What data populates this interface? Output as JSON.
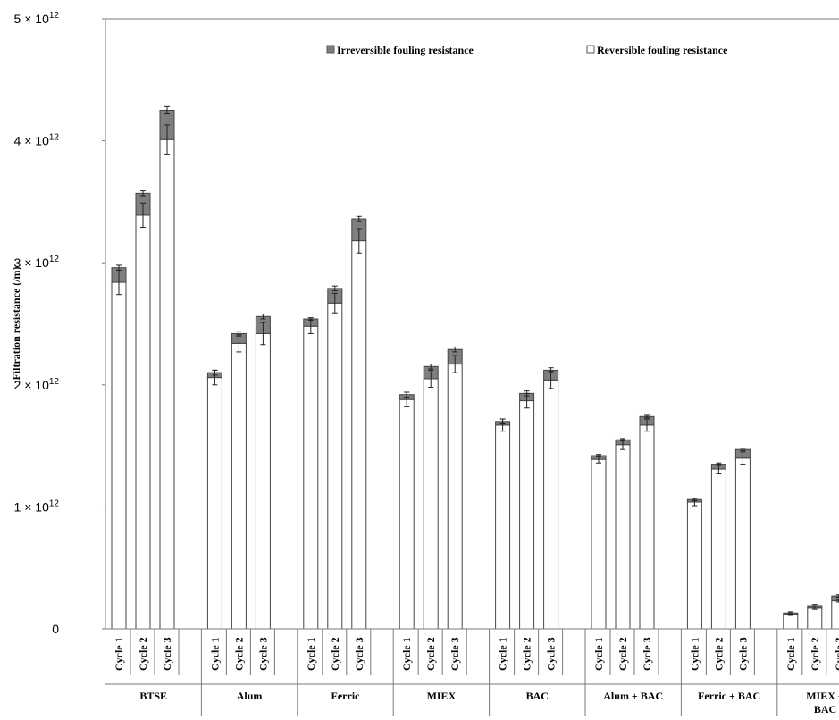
{
  "chart_data": {
    "type": "bar",
    "stacked": true,
    "ylabel": "Filtration resistance (/m)",
    "ylim": [
      0,
      5000000000000.0
    ],
    "y_ticks": [
      {
        "value": 0,
        "label": "0"
      },
      {
        "value": 1000000000000.0,
        "label": "1 × 10",
        "exp": "12"
      },
      {
        "value": 2000000000000.0,
        "label": "2 × 10",
        "exp": "12"
      },
      {
        "value": 3000000000000.0,
        "label": "3 × 10",
        "exp": "12"
      },
      {
        "value": 4000000000000.0,
        "label": "4 × 10",
        "exp": "12"
      },
      {
        "value": 5000000000000.0,
        "label": "5 × 10",
        "exp": "12"
      }
    ],
    "legend": {
      "placement": "top",
      "irreversible": {
        "label": "Irreversible fouling resistance",
        "color": "#7f7f7f"
      },
      "reversible": {
        "label": "Reversible fouling resistance",
        "color": "#ffffff"
      }
    },
    "cycle_labels": [
      "Cycle 1",
      "Cycle 2",
      "Cycle 3"
    ],
    "groups": [
      {
        "name": "BTSE",
        "reversible": [
          2840000000000.0,
          3390000000000.0,
          4010000000000.0
        ],
        "irreversible": [
          120000000000.0,
          180000000000.0,
          240000000000.0
        ],
        "err_reversible": [
          100000000000.0,
          100000000000.0,
          120000000000.0
        ],
        "err_total": [
          20000000000.0,
          20000000000.0,
          30000000000.0
        ]
      },
      {
        "name": "Alum",
        "reversible": [
          2060000000000.0,
          2340000000000.0,
          2420000000000.0
        ],
        "irreversible": [
          40000000000.0,
          80000000000.0,
          140000000000.0
        ],
        "err_reversible": [
          60000000000.0,
          70000000000.0,
          90000000000.0
        ],
        "err_total": [
          20000000000.0,
          20000000000.0,
          20000000000.0
        ]
      },
      {
        "name": "Ferric",
        "reversible": [
          2480000000000.0,
          2670000000000.0,
          3180000000000.0
        ],
        "irreversible": [
          60000000000.0,
          120000000000.0,
          180000000000.0
        ],
        "err_reversible": [
          60000000000.0,
          80000000000.0,
          100000000000.0
        ],
        "err_total": [
          10000000000.0,
          20000000000.0,
          20000000000.0
        ]
      },
      {
        "name": "MIEX",
        "reversible": [
          1880000000000.0,
          2050000000000.0,
          2170000000000.0
        ],
        "irreversible": [
          40000000000.0,
          100000000000.0,
          120000000000.0
        ],
        "err_reversible": [
          60000000000.0,
          70000000000.0,
          70000000000.0
        ],
        "err_total": [
          20000000000.0,
          20000000000.0,
          20000000000.0
        ]
      },
      {
        "name": "BAC",
        "reversible": [
          1670000000000.0,
          1870000000000.0,
          2040000000000.0
        ],
        "irreversible": [
          30000000000.0,
          60000000000.0,
          80000000000.0
        ],
        "err_reversible": [
          50000000000.0,
          60000000000.0,
          70000000000.0
        ],
        "err_total": [
          20000000000.0,
          20000000000.0,
          20000000000.0
        ]
      },
      {
        "name": "Alum + BAC",
        "reversible": [
          1390000000000.0,
          1510000000000.0,
          1670000000000.0
        ],
        "irreversible": [
          30000000000.0,
          40000000000.0,
          70000000000.0
        ],
        "err_reversible": [
          30000000000.0,
          40000000000.0,
          50000000000.0
        ],
        "err_total": [
          10000000000.0,
          10000000000.0,
          10000000000.0
        ]
      },
      {
        "name": "Ferric + BAC",
        "reversible": [
          1040000000000.0,
          1310000000000.0,
          1400000000000.0
        ],
        "irreversible": [
          20000000000.0,
          40000000000.0,
          70000000000.0
        ],
        "err_reversible": [
          30000000000.0,
          40000000000.0,
          50000000000.0
        ],
        "err_total": [
          10000000000.0,
          10000000000.0,
          10000000000.0
        ]
      },
      {
        "name": "MIEX + BAC",
        "reversible": [
          120000000000.0,
          170000000000.0,
          230000000000.0
        ],
        "irreversible": [
          10000000000.0,
          20000000000.0,
          40000000000.0
        ],
        "err_reversible": [
          10000000000.0,
          10000000000.0,
          10000000000.0
        ],
        "err_total": [
          10000000000.0,
          10000000000.0,
          10000000000.0
        ]
      }
    ]
  }
}
